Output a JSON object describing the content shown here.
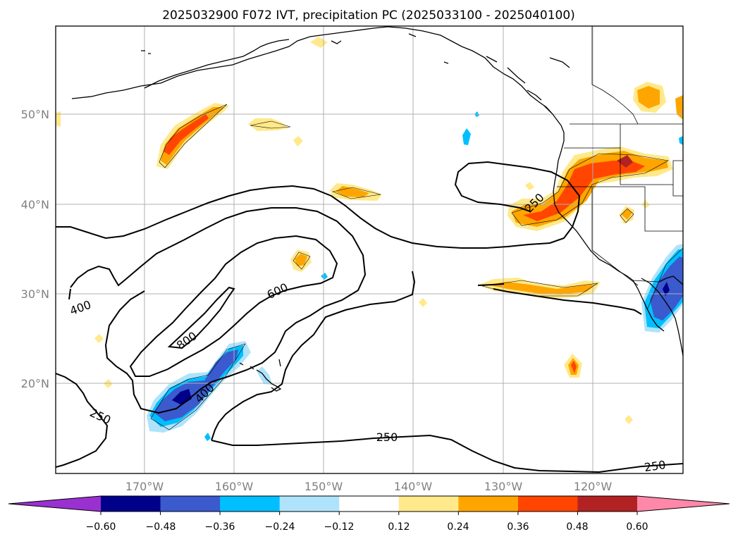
{
  "title": "2025032900 F072 IVT, precipitation PC (2025033100 - 2025040100)",
  "map": {
    "lat_labels": [
      "50°N",
      "40°N",
      "30°N",
      "20°N"
    ],
    "lon_labels": [
      "170°W",
      "160°W",
      "150°W",
      "140°W",
      "130°W",
      "120°W"
    ],
    "contour_labels": [
      "400",
      "600",
      "800",
      "400",
      "250",
      "250",
      "250",
      "250"
    ],
    "contour_levels": [
      250,
      400,
      600,
      800
    ],
    "contour_label_values": [
      400,
      600,
      800,
      400,
      250,
      250,
      250,
      250
    ]
  },
  "colorbar": {
    "tick_labels": [
      "−0.60",
      "−0.48",
      "−0.36",
      "−0.24",
      "−0.12",
      "0.12",
      "0.24",
      "0.36",
      "0.48",
      "0.60"
    ],
    "levels": [
      -0.6,
      -0.48,
      -0.36,
      -0.24,
      -0.12,
      0.12,
      0.24,
      0.36,
      0.48,
      0.6
    ],
    "colors": [
      "#9b30d0",
      "#00008b",
      "#3a5acd",
      "#00bfff",
      "#afe3fb",
      "#ffffff",
      "#ffe98a",
      "#ffa500",
      "#ff4500",
      "#b22222",
      "#ff88aa"
    ]
  },
  "colors": {
    "gridline": "#b0b0b0",
    "coastline": "#000000",
    "contour": "#000000"
  }
}
